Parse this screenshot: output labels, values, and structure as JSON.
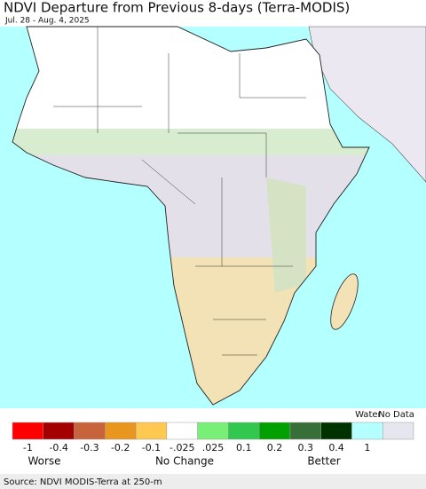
{
  "header": {
    "title": "NDVI Departure from Previous 8-days (Terra-MODIS)",
    "subtitle": "Jul. 28 - Aug. 4, 2025"
  },
  "legend": {
    "colors": [
      "#ff0000",
      "#a50000",
      "#c8643c",
      "#e8961e",
      "#ffc850",
      "#ffffff",
      "#78f078",
      "#32c850",
      "#00a000",
      "#386e38",
      "#003200",
      "#b4ffff",
      "#e6e6f0"
    ],
    "ticks": [
      "-1",
      "-0.4",
      "-0.3",
      "-0.2",
      "-0.1",
      "-.025",
      ".025",
      "0.1",
      "0.2",
      "0.3",
      "0.4",
      "1"
    ],
    "water_label": "Water",
    "nodata_label": "No Data",
    "captions": [
      "Worse",
      "No Change",
      "Better"
    ]
  },
  "source": "Source: NDVI MODIS-Terra at 250-m"
}
